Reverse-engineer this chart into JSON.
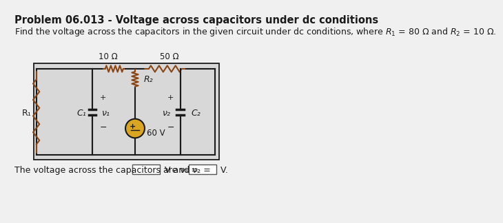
{
  "title": "Problem 06.013 - Voltage across capacitors under dc conditions",
  "desc": "Find the voltage across the capacitors in the given circuit under dc conditions, where $R_1$ = 80 $\\Omega$ and $R_2$ = 10 $\\Omega$.",
  "bg_color": "#f0f0f0",
  "circuit_bg": "#d8d8d8",
  "title_fontsize": 10.5,
  "body_fontsize": 9,
  "resistor_label_10": "10 Ω",
  "resistor_label_50": "50 Ω",
  "R2_label": "R₂",
  "R1_label": "R₁",
  "C1_label": "C₁",
  "C2_label": "C₂",
  "v1_label": "ν₁",
  "v2_label": "ν₂",
  "voltage_label": "60 V",
  "wire_color": "#1a1a1a",
  "resistor_color": "#8B4513",
  "voltage_source_color": "#DAA520",
  "text_color": "#1a1a1a"
}
